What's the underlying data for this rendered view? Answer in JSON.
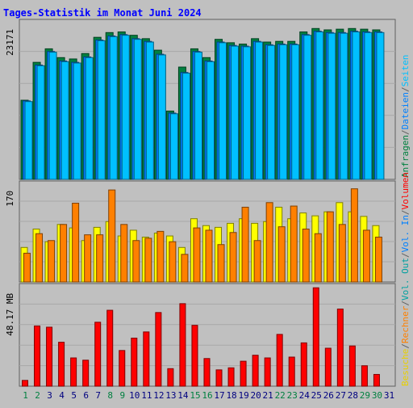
{
  "title": "Tages-Statistik im Monat Juni 2024",
  "colors": {
    "background": "#c0c0c0",
    "title": "#0000ff",
    "frame": "#606060",
    "anfragen": "#008040",
    "dateien": "#0080ff",
    "seiten": "#00c0ff",
    "besuche": "#ffff00",
    "rechner": "#ff8000",
    "volumen": "#ff0000",
    "weekday_label": "#000080",
    "weekend_label": "#008040"
  },
  "right_legend": {
    "top": [
      {
        "text": "Anfragen",
        "color": "#008040"
      },
      {
        "text": "/",
        "color": "#606060"
      },
      {
        "text": "Dateien",
        "color": "#0080ff"
      },
      {
        "text": "/",
        "color": "#606060"
      },
      {
        "text": "Seiten",
        "color": "#00c0ff"
      }
    ],
    "middle": [
      {
        "text": "Besuche",
        "color": "#e8d000"
      },
      {
        "text": "/",
        "color": "#606060"
      },
      {
        "text": "Rechner",
        "color": "#ff8000"
      },
      {
        "text": "/",
        "color": "#606060"
      },
      {
        "text": "Vol. Out",
        "color": "#00a0a0"
      },
      {
        "text": "/",
        "color": "#606060"
      },
      {
        "text": "Vol. In",
        "color": "#0080ff"
      },
      {
        "text": "/",
        "color": "#606060"
      },
      {
        "text": "Volumen",
        "color": "#ff0000"
      }
    ]
  },
  "chart_data": [
    {
      "type": "bar",
      "name": "requests",
      "y_label": "23171",
      "ylim": [
        0,
        23171
      ],
      "categories": [
        "1",
        "2",
        "3",
        "4",
        "5",
        "6",
        "7",
        "8",
        "9",
        "10",
        "11",
        "12",
        "13",
        "14",
        "15",
        "16",
        "17",
        "18",
        "19",
        "20",
        "21",
        "22",
        "23",
        "24",
        "25",
        "26",
        "27",
        "28",
        "29",
        "30"
      ],
      "weekend": [
        "1",
        "2",
        "8",
        "9",
        "15",
        "16",
        "22",
        "23",
        "29",
        "30"
      ],
      "series": [
        {
          "name": "Anfragen",
          "values": [
            11700,
            17300,
            19300,
            18000,
            17800,
            18600,
            21000,
            21700,
            21800,
            21300,
            20800,
            19100,
            10100,
            16600,
            19300,
            18000,
            20700,
            20200,
            20000,
            20800,
            20300,
            20400,
            20400,
            21800,
            22300,
            22100,
            22200,
            22300,
            22200,
            22100
          ]
        },
        {
          "name": "Dateien",
          "values": [
            11600,
            16900,
            18900,
            17500,
            17300,
            18100,
            20600,
            21200,
            21400,
            20800,
            20400,
            18500,
            9800,
            15800,
            18900,
            17500,
            20300,
            19800,
            19700,
            20400,
            19900,
            20000,
            20000,
            21400,
            21900,
            21700,
            21700,
            21900,
            21800,
            21800
          ]
        },
        {
          "name": "Seiten",
          "values": [
            11500,
            16800,
            18800,
            17400,
            17200,
            18000,
            20500,
            21100,
            21300,
            20700,
            20300,
            18400,
            9700,
            15700,
            18800,
            17400,
            20200,
            19700,
            19600,
            20300,
            19800,
            19900,
            19900,
            21300,
            21800,
            21600,
            21600,
            21800,
            21700,
            21700
          ]
        }
      ]
    },
    {
      "type": "bar",
      "name": "visits",
      "y_label": "170",
      "ylim": [
        0,
        170
      ],
      "categories": [
        "1",
        "2",
        "3",
        "4",
        "5",
        "6",
        "7",
        "8",
        "9",
        "10",
        "11",
        "12",
        "13",
        "14",
        "15",
        "16",
        "17",
        "18",
        "19",
        "20",
        "21",
        "22",
        "23",
        "24",
        "25",
        "26",
        "27",
        "28",
        "29",
        "30"
      ],
      "series": [
        {
          "name": "Besuche",
          "values": [
            60,
            92,
            70,
            100,
            94,
            72,
            95,
            105,
            80,
            90,
            78,
            85,
            80,
            60,
            110,
            98,
            95,
            102,
            110,
            102,
            105,
            130,
            110,
            120,
            115,
            122,
            138,
            122,
            114,
            98
          ]
        },
        {
          "name": "Rechner",
          "values": [
            50,
            84,
            72,
            100,
            137,
            82,
            82,
            160,
            100,
            72,
            76,
            88,
            70,
            48,
            94,
            90,
            65,
            86,
            130,
            72,
            138,
            96,
            132,
            92,
            84,
            122,
            100,
            162,
            90,
            78
          ]
        }
      ]
    },
    {
      "type": "bar",
      "name": "volume",
      "y_label": "48.17 MB",
      "ylim": [
        0,
        48.17
      ],
      "categories": [
        "1",
        "2",
        "3",
        "4",
        "5",
        "6",
        "7",
        "8",
        "9",
        "10",
        "11",
        "12",
        "13",
        "14",
        "15",
        "16",
        "17",
        "18",
        "19",
        "20",
        "21",
        "22",
        "23",
        "24",
        "25",
        "26",
        "27",
        "28",
        "29",
        "30"
      ],
      "series": [
        {
          "name": "Volumen",
          "values": [
            2.8,
            29.2,
            28.6,
            21.3,
            13.7,
            12.6,
            31.0,
            36.8,
            17.3,
            23.3,
            26.3,
            35.7,
            8.5,
            40.0,
            29.5,
            13.4,
            7.9,
            8.9,
            12.1,
            15.0,
            13.7,
            25.1,
            14.1,
            21.0,
            47.7,
            18.4,
            37.4,
            19.5,
            9.9,
            5.7
          ]
        }
      ]
    }
  ]
}
